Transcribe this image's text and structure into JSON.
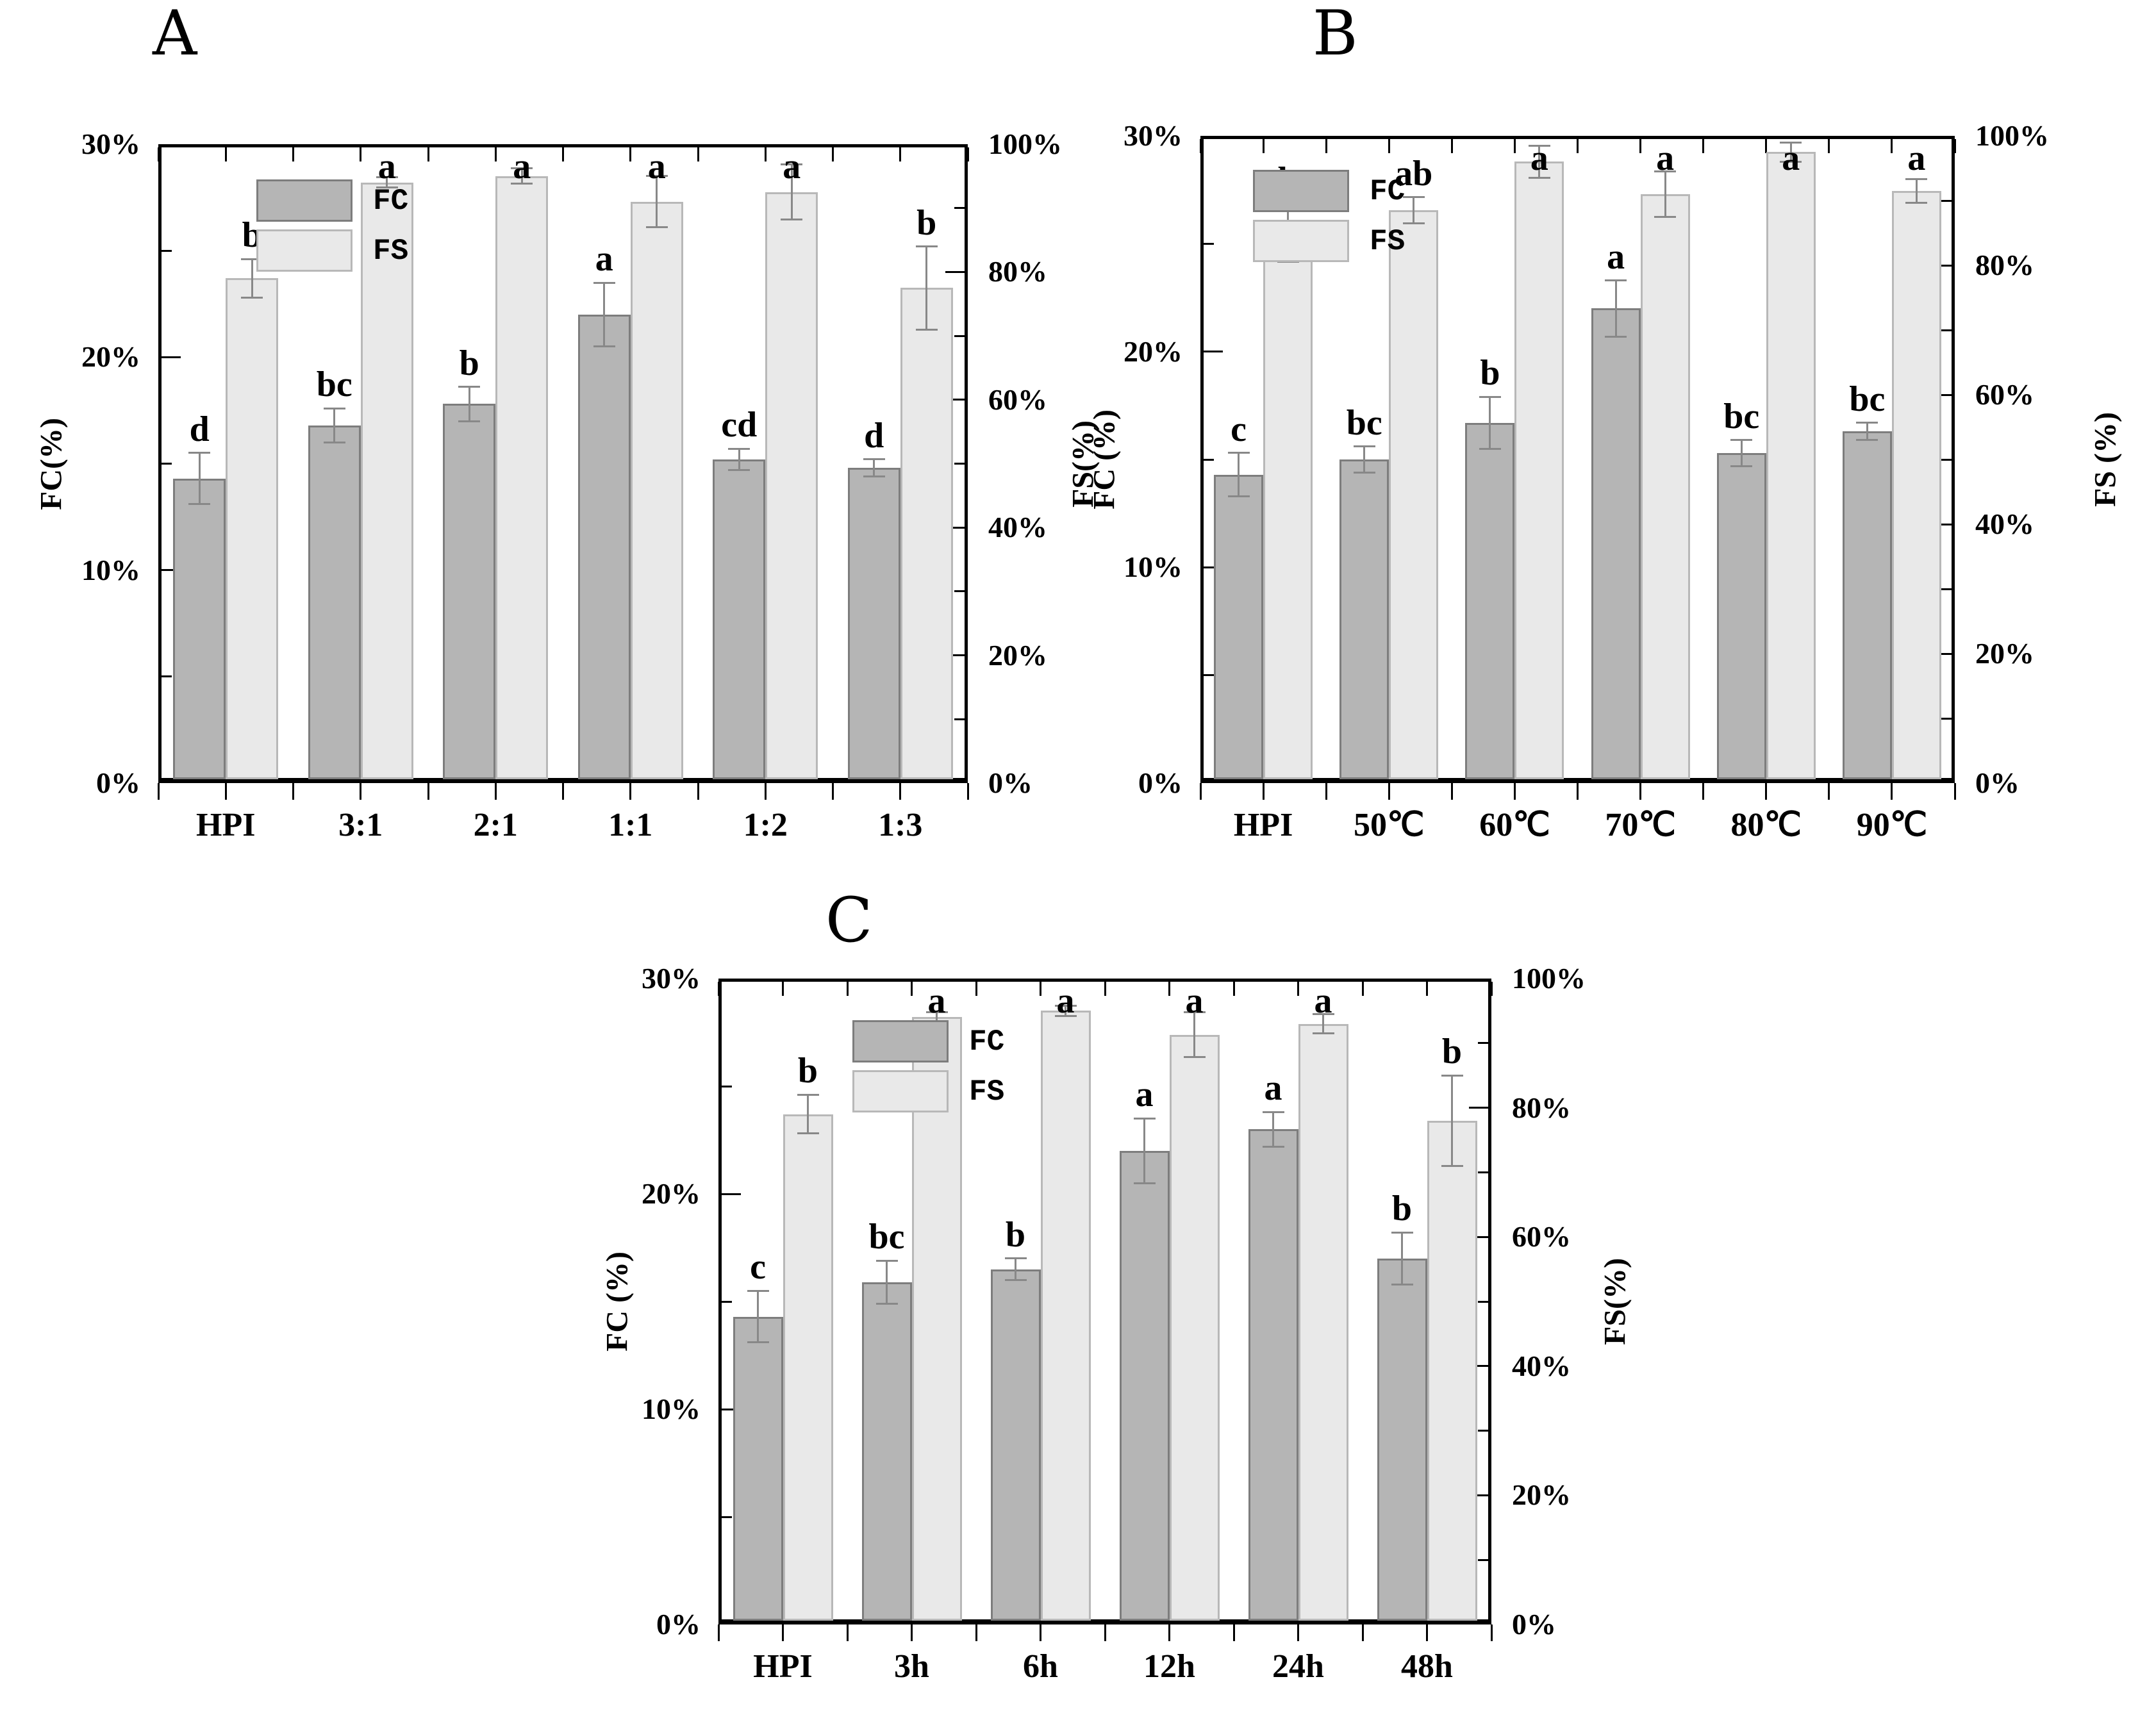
{
  "figure": {
    "background": "#ffffff",
    "axis_color": "#000000",
    "colors": {
      "fc_fill": "#b5b5b5",
      "fc_border": "#7d7d7d",
      "fs_fill": "#e9e9e9",
      "fs_border": "#b8b8b8",
      "error_bar": "#888888",
      "text": "#000000"
    },
    "legend": {
      "fc_label": "FC",
      "fs_label": "FS"
    }
  },
  "chart_data": [
    {
      "id": "A",
      "panel_label": "A",
      "type": "bar",
      "categories": [
        "HPI",
        "3:1",
        "2:1",
        "1:1",
        "1:2",
        "1:3"
      ],
      "left_axis": {
        "label": "FC(%)",
        "range": [
          0,
          30
        ],
        "tick_labels": [
          "0%",
          "10%",
          "20%",
          "30%"
        ]
      },
      "right_axis": {
        "label": "FS(%)",
        "range": [
          0,
          100
        ],
        "tick_labels": [
          "0%",
          "20%",
          "40%",
          "60%",
          "80%",
          "100%"
        ]
      },
      "legend_position": "top-left-inside",
      "grid": false,
      "series": [
        {
          "name": "FC",
          "axis": "left",
          "values": [
            14.3,
            16.8,
            17.8,
            22.0,
            15.2,
            14.8
          ],
          "errors": [
            1.2,
            0.8,
            0.8,
            1.5,
            0.5,
            0.4
          ],
          "sig_letters": [
            "d",
            "bc",
            "b",
            "a",
            "cd",
            "d"
          ]
        },
        {
          "name": "FS",
          "axis": "right",
          "values": [
            79.0,
            94.0,
            95.0,
            91.0,
            92.5,
            77.5
          ],
          "errors": [
            3.0,
            0.8,
            1.2,
            4.0,
            4.3,
            6.5
          ],
          "sig_letters": [
            "b",
            "a",
            "a",
            "a",
            "a",
            "b"
          ]
        }
      ]
    },
    {
      "id": "B",
      "panel_label": "B",
      "type": "bar",
      "categories": [
        "HPI",
        "50℃",
        "60℃",
        "70℃",
        "80℃",
        "90℃"
      ],
      "left_axis": {
        "label": "FC (%)",
        "range": [
          0,
          30
        ],
        "tick_labels": [
          "0%",
          "10%",
          "20%",
          "30%"
        ]
      },
      "right_axis": {
        "label": "FS (%)",
        "range": [
          0,
          100
        ],
        "tick_labels": [
          "0%",
          "20%",
          "40%",
          "60%",
          "80%",
          "100%"
        ]
      },
      "legend_position": "top-left-inside",
      "grid": false,
      "series": [
        {
          "name": "FC",
          "axis": "left",
          "values": [
            14.3,
            15.0,
            16.7,
            22.0,
            15.3,
            16.3
          ],
          "errors": [
            1.0,
            0.6,
            1.2,
            1.3,
            0.6,
            0.4
          ],
          "sig_letters": [
            "c",
            "bc",
            "b",
            "a",
            "bc",
            "bc"
          ]
        },
        {
          "name": "FS",
          "axis": "right",
          "values": [
            85.0,
            88.5,
            96.0,
            91.0,
            97.5,
            91.5
          ],
          "errors": [
            4.5,
            2.0,
            2.5,
            3.5,
            1.5,
            1.8
          ],
          "sig_letters": [
            "b",
            "ab",
            "a",
            "a",
            "a",
            "a"
          ]
        }
      ]
    },
    {
      "id": "C",
      "panel_label": "C",
      "type": "bar",
      "categories": [
        "HPI",
        "3h",
        "6h",
        "12h",
        "24h",
        "48h"
      ],
      "left_axis": {
        "label": "FC (%)",
        "range": [
          0,
          30
        ],
        "tick_labels": [
          "0%",
          "10%",
          "20%",
          "30%"
        ]
      },
      "right_axis": {
        "label": "FS(%)",
        "range": [
          0,
          100
        ],
        "tick_labels": [
          "0%",
          "20%",
          "40%",
          "60%",
          "80%",
          "100%"
        ]
      },
      "legend_position": "top-left-inside",
      "grid": false,
      "series": [
        {
          "name": "FC",
          "axis": "left",
          "values": [
            14.3,
            15.9,
            16.5,
            22.0,
            23.0,
            17.0
          ],
          "errors": [
            1.2,
            1.0,
            0.5,
            1.5,
            0.8,
            1.2
          ],
          "sig_letters": [
            "c",
            "bc",
            "b",
            "a",
            "a",
            "b"
          ]
        },
        {
          "name": "FS",
          "axis": "right",
          "values": [
            79.0,
            94.0,
            95.0,
            91.3,
            93.0,
            78.0
          ],
          "errors": [
            3.0,
            0.8,
            0.8,
            3.5,
            1.5,
            7.0
          ],
          "sig_letters": [
            "b",
            "a",
            "a",
            "a",
            "a",
            "b"
          ]
        }
      ]
    }
  ]
}
